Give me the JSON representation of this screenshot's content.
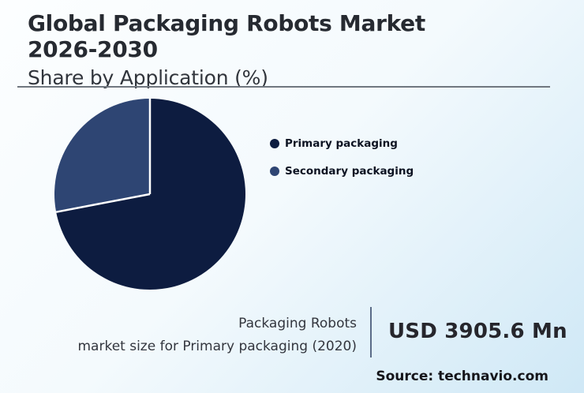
{
  "header": {
    "title_line1": "Global Packaging Robots Market",
    "title_line2": "2026-2030",
    "subtitle": "Share by Application (%)"
  },
  "chart_data": {
    "type": "pie",
    "title": "Global Packaging Robots Market 2026-2030",
    "subtitle": "Share by Application (%)",
    "start_angle_deg": 0,
    "direction": "clockwise",
    "legend_position": "right",
    "slices": [
      {
        "label": "Primary packaging",
        "value": 72,
        "color": "#0d1c40"
      },
      {
        "label": "Secondary packaging",
        "value": 28,
        "color": "#2e4573"
      }
    ],
    "slice_separator_color": "#ffffff"
  },
  "footer": {
    "caption_line1": "Packaging Robots",
    "caption_line2": "market size for Primary packaging (2020)",
    "value": "USD 3905.6 Mn",
    "source": "Source: technavio.com"
  },
  "colors": {
    "background_start": "#fcfeff",
    "background_end": "#cfe8f6",
    "title_text": "#262a31",
    "rule": "#70777f",
    "divider": "#5b6c88",
    "caption_text": "#33363e",
    "value_text": "#26262c",
    "source_text": "#15151a"
  }
}
